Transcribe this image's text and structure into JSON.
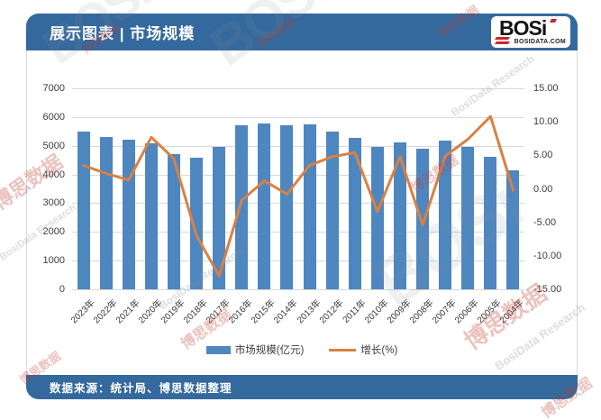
{
  "header": {
    "title": "展示图表 | 市场规模",
    "logo": {
      "name": "BOSi",
      "site": "BOSIDATA.COM"
    }
  },
  "footer": {
    "source": "数据来源：统计局、博思数据整理"
  },
  "watermark": {
    "cn": "博思数据",
    "en": "BosiData Research",
    "logo": "BOSi"
  },
  "colors": {
    "header_bg": "#34699E",
    "bar": "#4E86C0",
    "line": "#D98143",
    "grid": "#D8D8D8",
    "axis_text": "#3C3C3C"
  },
  "chart_data": {
    "type": "bar+line",
    "title": "市场规模",
    "categories": [
      "2023年",
      "2022年",
      "2021年",
      "2020年",
      "2019年",
      "2018年",
      "2017年",
      "2016年",
      "2015年",
      "2014年",
      "2013年",
      "2012年",
      "2011年",
      "2010年",
      "2009年",
      "2008年",
      "2007年",
      "2006年",
      "2005年",
      "2004年"
    ],
    "series": [
      {
        "name": "市场规模(亿元)",
        "type": "bar",
        "axis": "left",
        "color": "#4E86C0",
        "values": [
          5500,
          5320,
          5200,
          5070,
          4720,
          4570,
          4950,
          5700,
          5790,
          5700,
          5740,
          5480,
          5270,
          4960,
          5130,
          4900,
          5190,
          4960,
          4630,
          4150
        ]
      },
      {
        "name": "增长(%)",
        "type": "line",
        "axis": "right",
        "color": "#D98143",
        "values": [
          3.5,
          2.3,
          1.3,
          7.7,
          4.5,
          -7.0,
          -13.0,
          -1.7,
          1.2,
          -0.8,
          3.5,
          4.8,
          5.4,
          -3.4,
          4.8,
          -5.4,
          4.9,
          7.4,
          10.8,
          -0.2
        ]
      }
    ],
    "left_axis": {
      "min": 0,
      "max": 7000,
      "step": 1000,
      "labels": [
        "0",
        "1000",
        "2000",
        "3000",
        "4000",
        "5000",
        "6000",
        "7000"
      ]
    },
    "right_axis": {
      "min": -15,
      "max": 15,
      "step": 5,
      "labels": [
        "15.00",
        "10.00",
        "5.00",
        "0.00",
        "-5.00",
        "-10.00",
        "-15.00"
      ]
    },
    "legend": [
      "市场规模(亿元)",
      "增长(%)"
    ],
    "legend_position": "bottom",
    "grid": true
  }
}
